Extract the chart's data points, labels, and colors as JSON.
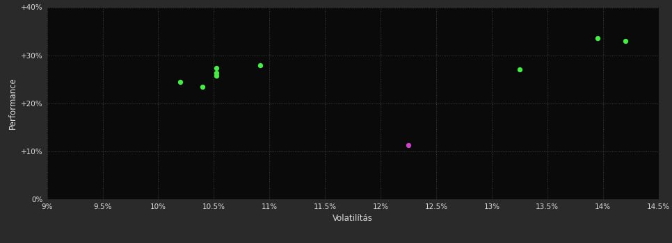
{
  "background_color": "#2a2a2a",
  "plot_bg_color": "#0a0a0a",
  "grid_color": "#404040",
  "text_color": "#dddddd",
  "xlabel": "Volatilítás",
  "ylabel": "Performance",
  "xlim": [
    0.09,
    0.145
  ],
  "ylim": [
    0.0,
    0.4
  ],
  "xticks": [
    0.09,
    0.095,
    0.1,
    0.105,
    0.11,
    0.115,
    0.12,
    0.125,
    0.13,
    0.135,
    0.14,
    0.145
  ],
  "yticks": [
    0.0,
    0.1,
    0.2,
    0.3,
    0.4
  ],
  "green_points": [
    [
      0.102,
      0.245
    ],
    [
      0.104,
      0.235
    ],
    [
      0.1052,
      0.274
    ],
    [
      0.1052,
      0.264
    ],
    [
      0.1052,
      0.257
    ],
    [
      0.1092,
      0.279
    ],
    [
      0.1325,
      0.27
    ],
    [
      0.1395,
      0.336
    ],
    [
      0.142,
      0.33
    ]
  ],
  "magenta_points": [
    [
      0.1225,
      0.113
    ]
  ],
  "green_color": "#44ee44",
  "magenta_color": "#cc44cc",
  "marker_size": 28
}
